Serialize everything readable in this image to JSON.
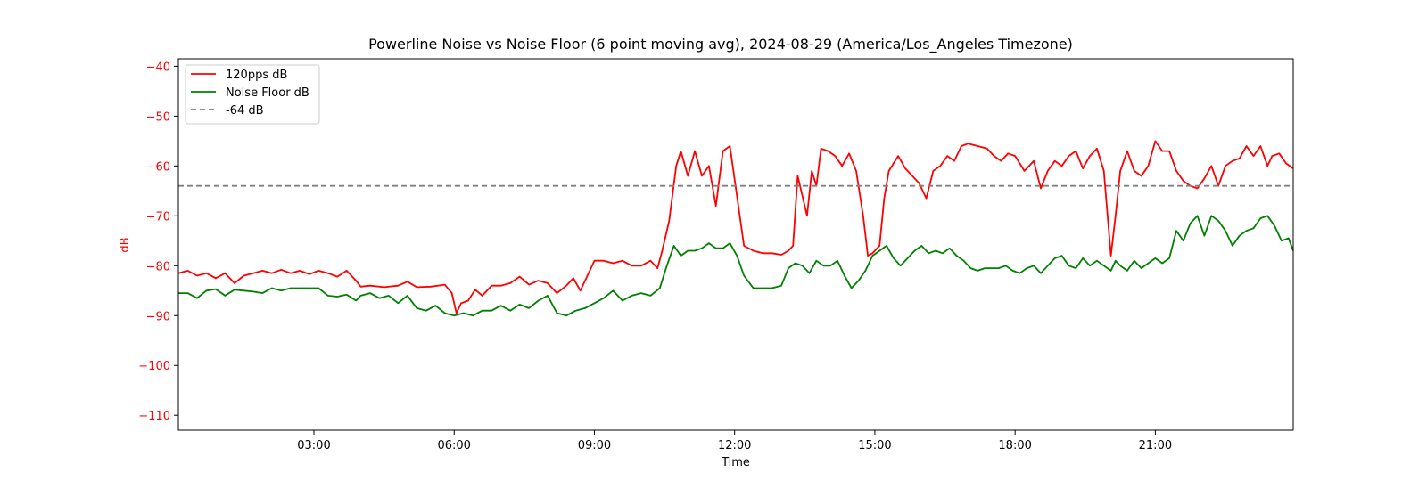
{
  "chart_data": {
    "type": "line",
    "title": "Powerline Noise vs Noise Floor (6 point moving avg), 2024-08-29 (America/Los_Angeles Timezone)",
    "xlabel": "Time",
    "ylabel": "dB",
    "ylim": [
      -113,
      -38.5
    ],
    "xlim_hours": [
      0.1,
      23.95
    ],
    "x_ticks": [
      {
        "hour": 3,
        "label": "03:00"
      },
      {
        "hour": 6,
        "label": "06:00"
      },
      {
        "hour": 9,
        "label": "09:00"
      },
      {
        "hour": 12,
        "label": "12:00"
      },
      {
        "hour": 15,
        "label": "15:00"
      },
      {
        "hour": 18,
        "label": "18:00"
      },
      {
        "hour": 21,
        "label": "21:00"
      }
    ],
    "y_ticks": [
      {
        "value": -40,
        "label": "−40"
      },
      {
        "value": -50,
        "label": "−50"
      },
      {
        "value": -60,
        "label": "−60"
      },
      {
        "value": -70,
        "label": "−70"
      },
      {
        "value": -80,
        "label": "−80"
      },
      {
        "value": -90,
        "label": "−90"
      },
      {
        "value": -100,
        "label": "−100"
      },
      {
        "value": -110,
        "label": "−110"
      }
    ],
    "grid": false,
    "legend_position": "top-left",
    "axis_label_color": "#ff0000",
    "series": [
      {
        "name": "120pps dB",
        "color": "#ff0000",
        "style": "solid",
        "points": [
          [
            0.1,
            -81.5
          ],
          [
            0.3,
            -81
          ],
          [
            0.5,
            -82
          ],
          [
            0.7,
            -81.5
          ],
          [
            0.9,
            -82.5
          ],
          [
            1.1,
            -81.5
          ],
          [
            1.3,
            -83.5
          ],
          [
            1.5,
            -82
          ],
          [
            1.7,
            -81.5
          ],
          [
            1.9,
            -81
          ],
          [
            2.1,
            -81.5
          ],
          [
            2.3,
            -80.8
          ],
          [
            2.5,
            -81.5
          ],
          [
            2.7,
            -81
          ],
          [
            2.9,
            -81.7
          ],
          [
            3.1,
            -81
          ],
          [
            3.3,
            -81.5
          ],
          [
            3.5,
            -82.2
          ],
          [
            3.7,
            -81
          ],
          [
            3.9,
            -83
          ],
          [
            4.0,
            -84.2
          ],
          [
            4.2,
            -84
          ],
          [
            4.5,
            -84.3
          ],
          [
            4.8,
            -84
          ],
          [
            5.0,
            -83.2
          ],
          [
            5.2,
            -84.3
          ],
          [
            5.5,
            -84.2
          ],
          [
            5.8,
            -83.8
          ],
          [
            5.95,
            -85.5
          ],
          [
            6.05,
            -89.5
          ],
          [
            6.15,
            -87.5
          ],
          [
            6.3,
            -87
          ],
          [
            6.45,
            -84.8
          ],
          [
            6.6,
            -86
          ],
          [
            6.8,
            -84
          ],
          [
            7.0,
            -84
          ],
          [
            7.2,
            -83.5
          ],
          [
            7.4,
            -82.2
          ],
          [
            7.6,
            -83.8
          ],
          [
            7.8,
            -83
          ],
          [
            8.0,
            -83.5
          ],
          [
            8.2,
            -85.5
          ],
          [
            8.4,
            -84
          ],
          [
            8.55,
            -82.5
          ],
          [
            8.7,
            -85
          ],
          [
            8.8,
            -83
          ],
          [
            9.0,
            -79
          ],
          [
            9.2,
            -79
          ],
          [
            9.4,
            -79.5
          ],
          [
            9.6,
            -79
          ],
          [
            9.8,
            -80
          ],
          [
            10.0,
            -80
          ],
          [
            10.2,
            -79
          ],
          [
            10.35,
            -80.5
          ],
          [
            10.45,
            -77
          ],
          [
            10.6,
            -71
          ],
          [
            10.75,
            -60
          ],
          [
            10.85,
            -57
          ],
          [
            11.0,
            -62
          ],
          [
            11.15,
            -57
          ],
          [
            11.3,
            -62
          ],
          [
            11.45,
            -60
          ],
          [
            11.6,
            -68
          ],
          [
            11.75,
            -57
          ],
          [
            11.9,
            -56
          ],
          [
            12.05,
            -66
          ],
          [
            12.2,
            -76
          ],
          [
            12.4,
            -77
          ],
          [
            12.6,
            -77.5
          ],
          [
            12.8,
            -77.5
          ],
          [
            13.0,
            -77.8
          ],
          [
            13.15,
            -77
          ],
          [
            13.25,
            -76
          ],
          [
            13.35,
            -62
          ],
          [
            13.45,
            -66
          ],
          [
            13.55,
            -70
          ],
          [
            13.65,
            -61
          ],
          [
            13.75,
            -64
          ],
          [
            13.85,
            -56.5
          ],
          [
            14.0,
            -57
          ],
          [
            14.15,
            -58
          ],
          [
            14.3,
            -60
          ],
          [
            14.45,
            -57.5
          ],
          [
            14.6,
            -61
          ],
          [
            14.75,
            -70
          ],
          [
            14.85,
            -78
          ],
          [
            14.95,
            -77.5
          ],
          [
            15.1,
            -76
          ],
          [
            15.2,
            -66.5
          ],
          [
            15.3,
            -61
          ],
          [
            15.5,
            -58
          ],
          [
            15.65,
            -60.5
          ],
          [
            15.8,
            -62
          ],
          [
            15.95,
            -63.5
          ],
          [
            16.1,
            -66.5
          ],
          [
            16.25,
            -61
          ],
          [
            16.4,
            -60
          ],
          [
            16.55,
            -58
          ],
          [
            16.7,
            -59
          ],
          [
            16.85,
            -56
          ],
          [
            17.0,
            -55.5
          ],
          [
            17.2,
            -56
          ],
          [
            17.4,
            -56.5
          ],
          [
            17.55,
            -58
          ],
          [
            17.7,
            -59
          ],
          [
            17.85,
            -57.5
          ],
          [
            18.0,
            -58
          ],
          [
            18.2,
            -61
          ],
          [
            18.4,
            -59
          ],
          [
            18.55,
            -64.5
          ],
          [
            18.7,
            -61
          ],
          [
            18.85,
            -59
          ],
          [
            19.0,
            -60
          ],
          [
            19.15,
            -58
          ],
          [
            19.3,
            -57
          ],
          [
            19.45,
            -60.5
          ],
          [
            19.6,
            -58
          ],
          [
            19.75,
            -56.5
          ],
          [
            19.9,
            -61
          ],
          [
            20.05,
            -78
          ],
          [
            20.15,
            -70
          ],
          [
            20.25,
            -61
          ],
          [
            20.4,
            -57
          ],
          [
            20.55,
            -61
          ],
          [
            20.7,
            -62
          ],
          [
            20.85,
            -60
          ],
          [
            21.0,
            -55
          ],
          [
            21.15,
            -57
          ],
          [
            21.3,
            -57
          ],
          [
            21.45,
            -61
          ],
          [
            21.6,
            -63
          ],
          [
            21.75,
            -64
          ],
          [
            21.9,
            -64.5
          ],
          [
            22.05,
            -62.5
          ],
          [
            22.2,
            -60
          ],
          [
            22.35,
            -64
          ],
          [
            22.5,
            -60
          ],
          [
            22.65,
            -59
          ],
          [
            22.8,
            -58.5
          ],
          [
            22.95,
            -56
          ],
          [
            23.1,
            -58
          ],
          [
            23.25,
            -56
          ],
          [
            23.4,
            -60
          ],
          [
            23.5,
            -58
          ],
          [
            23.65,
            -57.5
          ],
          [
            23.8,
            -59.5
          ],
          [
            23.95,
            -60.5
          ]
        ]
      },
      {
        "name": "Noise Floor dB",
        "color": "#008000",
        "style": "solid",
        "points": [
          [
            0.1,
            -85.5
          ],
          [
            0.3,
            -85.5
          ],
          [
            0.5,
            -86.5
          ],
          [
            0.7,
            -85
          ],
          [
            0.9,
            -84.7
          ],
          [
            1.1,
            -86
          ],
          [
            1.3,
            -84.8
          ],
          [
            1.5,
            -85
          ],
          [
            1.7,
            -85.2
          ],
          [
            1.9,
            -85.5
          ],
          [
            2.1,
            -84.5
          ],
          [
            2.3,
            -85
          ],
          [
            2.5,
            -84.5
          ],
          [
            2.7,
            -84.5
          ],
          [
            2.9,
            -84.5
          ],
          [
            3.1,
            -84.5
          ],
          [
            3.3,
            -86
          ],
          [
            3.5,
            -86.2
          ],
          [
            3.7,
            -85.8
          ],
          [
            3.9,
            -87
          ],
          [
            4.0,
            -86
          ],
          [
            4.2,
            -85.5
          ],
          [
            4.4,
            -86.5
          ],
          [
            4.6,
            -86
          ],
          [
            4.8,
            -87.5
          ],
          [
            5.0,
            -86
          ],
          [
            5.2,
            -88.5
          ],
          [
            5.4,
            -89
          ],
          [
            5.6,
            -88
          ],
          [
            5.8,
            -89.5
          ],
          [
            6.0,
            -90
          ],
          [
            6.2,
            -89.5
          ],
          [
            6.4,
            -90
          ],
          [
            6.6,
            -89
          ],
          [
            6.8,
            -89
          ],
          [
            7.0,
            -88
          ],
          [
            7.2,
            -89
          ],
          [
            7.4,
            -87.8
          ],
          [
            7.6,
            -88.5
          ],
          [
            7.8,
            -87
          ],
          [
            8.0,
            -86
          ],
          [
            8.2,
            -89.5
          ],
          [
            8.4,
            -90
          ],
          [
            8.6,
            -89
          ],
          [
            8.8,
            -88.5
          ],
          [
            9.0,
            -87.5
          ],
          [
            9.2,
            -86.5
          ],
          [
            9.4,
            -85
          ],
          [
            9.6,
            -87
          ],
          [
            9.8,
            -86
          ],
          [
            10.0,
            -85.5
          ],
          [
            10.2,
            -86
          ],
          [
            10.4,
            -84.5
          ],
          [
            10.55,
            -80
          ],
          [
            10.7,
            -76
          ],
          [
            10.85,
            -78
          ],
          [
            11.0,
            -77
          ],
          [
            11.15,
            -77
          ],
          [
            11.3,
            -76.5
          ],
          [
            11.45,
            -75.5
          ],
          [
            11.6,
            -76.5
          ],
          [
            11.75,
            -76.5
          ],
          [
            11.9,
            -75.5
          ],
          [
            12.05,
            -78
          ],
          [
            12.2,
            -82
          ],
          [
            12.4,
            -84.5
          ],
          [
            12.6,
            -84.5
          ],
          [
            12.8,
            -84.5
          ],
          [
            13.0,
            -84
          ],
          [
            13.15,
            -80.5
          ],
          [
            13.3,
            -79.5
          ],
          [
            13.45,
            -80
          ],
          [
            13.6,
            -81.5
          ],
          [
            13.75,
            -79
          ],
          [
            13.9,
            -80
          ],
          [
            14.05,
            -80
          ],
          [
            14.2,
            -79
          ],
          [
            14.35,
            -82
          ],
          [
            14.5,
            -84.5
          ],
          [
            14.65,
            -83
          ],
          [
            14.8,
            -81
          ],
          [
            14.95,
            -78
          ],
          [
            15.1,
            -77
          ],
          [
            15.25,
            -76
          ],
          [
            15.4,
            -78.5
          ],
          [
            15.55,
            -80
          ],
          [
            15.7,
            -78.5
          ],
          [
            15.85,
            -77
          ],
          [
            16.0,
            -76
          ],
          [
            16.15,
            -77.5
          ],
          [
            16.3,
            -77
          ],
          [
            16.45,
            -77.5
          ],
          [
            16.6,
            -76.5
          ],
          [
            16.75,
            -78
          ],
          [
            16.9,
            -79
          ],
          [
            17.05,
            -80.5
          ],
          [
            17.2,
            -81
          ],
          [
            17.35,
            -80.5
          ],
          [
            17.5,
            -80.5
          ],
          [
            17.65,
            -80.5
          ],
          [
            17.8,
            -80
          ],
          [
            17.95,
            -81
          ],
          [
            18.1,
            -81.5
          ],
          [
            18.25,
            -80.5
          ],
          [
            18.4,
            -80
          ],
          [
            18.55,
            -81.5
          ],
          [
            18.7,
            -80
          ],
          [
            18.85,
            -78.5
          ],
          [
            19.0,
            -78
          ],
          [
            19.15,
            -80
          ],
          [
            19.3,
            -80.5
          ],
          [
            19.45,
            -78.5
          ],
          [
            19.6,
            -80
          ],
          [
            19.75,
            -79
          ],
          [
            19.9,
            -80
          ],
          [
            20.05,
            -81
          ],
          [
            20.15,
            -79
          ],
          [
            20.25,
            -80
          ],
          [
            20.4,
            -81
          ],
          [
            20.55,
            -79
          ],
          [
            20.7,
            -80.5
          ],
          [
            20.85,
            -79.5
          ],
          [
            21.0,
            -78.5
          ],
          [
            21.15,
            -79.5
          ],
          [
            21.3,
            -78.5
          ],
          [
            21.45,
            -73
          ],
          [
            21.6,
            -75
          ],
          [
            21.75,
            -71.5
          ],
          [
            21.9,
            -70
          ],
          [
            22.05,
            -74
          ],
          [
            22.2,
            -70
          ],
          [
            22.35,
            -71
          ],
          [
            22.5,
            -73
          ],
          [
            22.65,
            -76
          ],
          [
            22.8,
            -74
          ],
          [
            22.95,
            -73
          ],
          [
            23.1,
            -72.5
          ],
          [
            23.25,
            -70.5
          ],
          [
            23.4,
            -70
          ],
          [
            23.55,
            -72
          ],
          [
            23.7,
            -75
          ],
          [
            23.85,
            -74.5
          ],
          [
            23.95,
            -77
          ]
        ]
      },
      {
        "name": "-64 dB",
        "color": "#808080",
        "style": "dashed",
        "constant": -64
      }
    ]
  }
}
